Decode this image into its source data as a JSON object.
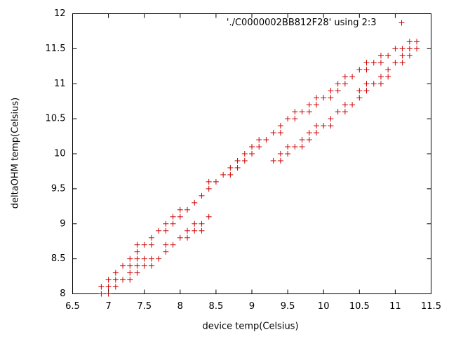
{
  "chart_data": {
    "type": "scatter",
    "xlabel": "device temp(Celsius)",
    "ylabel": "deltaOHM temp(Celsius)",
    "xlim": [
      6.5,
      11.5
    ],
    "ylim": [
      8,
      12
    ],
    "xticks": [
      6.5,
      7,
      7.5,
      8,
      8.5,
      9,
      9.5,
      10,
      10.5,
      11,
      11.5
    ],
    "yticks": [
      8,
      8.5,
      9,
      9.5,
      10,
      10.5,
      11,
      11.5,
      12
    ],
    "legend": "top right",
    "marker": "plus",
    "grid": false,
    "x": [
      6.9,
      6.9,
      7.0,
      7.0,
      7.0,
      7.1,
      7.1,
      7.1,
      7.2,
      7.2,
      7.3,
      7.3,
      7.3,
      7.3,
      7.4,
      7.4,
      7.4,
      7.4,
      7.4,
      7.5,
      7.5,
      7.5,
      7.6,
      7.6,
      7.6,
      7.6,
      7.7,
      7.7,
      7.8,
      7.8,
      7.8,
      7.8,
      7.9,
      7.9,
      7.9,
      8.0,
      8.0,
      8.0,
      8.1,
      8.1,
      8.1,
      8.2,
      8.2,
      8.2,
      8.3,
      8.3,
      8.3,
      8.4,
      8.4,
      8.4,
      8.5,
      8.6,
      8.7,
      8.7,
      8.8,
      8.8,
      8.9,
      8.9,
      9.0,
      9.0,
      9.1,
      9.1,
      9.2,
      9.3,
      9.3,
      9.4,
      9.4,
      9.4,
      9.4,
      9.5,
      9.5,
      9.5,
      9.6,
      9.6,
      9.6,
      9.7,
      9.7,
      9.7,
      9.8,
      9.8,
      9.8,
      9.8,
      9.9,
      9.9,
      9.9,
      9.9,
      10.0,
      10.0,
      10.1,
      10.1,
      10.1,
      10.1,
      10.2,
      10.2,
      10.2,
      10.3,
      10.3,
      10.3,
      10.3,
      10.4,
      10.4,
      10.5,
      10.5,
      10.5,
      10.6,
      10.6,
      10.6,
      10.6,
      10.7,
      10.7,
      10.8,
      10.8,
      10.8,
      10.8,
      10.9,
      10.9,
      10.9,
      11.0,
      11.0,
      11.1,
      11.1,
      11.1,
      11.2,
      11.2,
      11.2,
      11.3,
      11.3
    ],
    "series": [
      {
        "name": "'./C0000002BB812F28' using 2:3",
        "color": "#cc0000",
        "values": [
          8.0,
          8.1,
          8.0,
          8.1,
          8.2,
          8.1,
          8.2,
          8.3,
          8.2,
          8.4,
          8.2,
          8.3,
          8.4,
          8.5,
          8.3,
          8.4,
          8.5,
          8.6,
          8.7,
          8.4,
          8.5,
          8.7,
          8.4,
          8.5,
          8.7,
          8.8,
          8.5,
          8.9,
          8.6,
          8.7,
          8.9,
          9.0,
          8.7,
          9.0,
          9.1,
          8.8,
          9.1,
          9.2,
          8.8,
          8.9,
          9.2,
          8.9,
          9.0,
          9.3,
          8.9,
          9.0,
          9.4,
          9.1,
          9.5,
          9.6,
          9.6,
          9.7,
          9.7,
          9.8,
          9.8,
          9.9,
          9.9,
          10.0,
          10.0,
          10.1,
          10.1,
          10.2,
          10.2,
          9.9,
          10.3,
          9.9,
          10.0,
          10.3,
          10.4,
          10.0,
          10.1,
          10.5,
          10.1,
          10.5,
          10.6,
          10.1,
          10.2,
          10.6,
          10.2,
          10.3,
          10.6,
          10.7,
          10.3,
          10.4,
          10.7,
          10.8,
          10.4,
          10.8,
          10.4,
          10.5,
          10.8,
          10.9,
          10.6,
          10.9,
          11.0,
          10.6,
          10.7,
          11.0,
          11.1,
          10.7,
          11.1,
          10.8,
          10.9,
          11.2,
          10.9,
          11.0,
          11.2,
          11.3,
          11.0,
          11.3,
          11.0,
          11.1,
          11.3,
          11.4,
          11.1,
          11.2,
          11.4,
          11.3,
          11.5,
          11.3,
          11.4,
          11.5,
          11.4,
          11.5,
          11.6,
          11.5,
          11.6
        ]
      }
    ]
  }
}
